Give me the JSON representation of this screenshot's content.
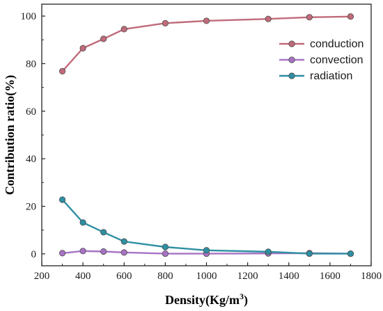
{
  "chart_data": {
    "type": "line",
    "xlabel": "Density(Kg/m",
    "xlabel_sup": "3",
    "xlabel_close": ")",
    "ylabel": "Contribution ratio(%)",
    "xlim": [
      200,
      1800
    ],
    "ylim": [
      -5,
      105
    ],
    "xticks": [
      200,
      400,
      600,
      800,
      1000,
      1200,
      1400,
      1600,
      1800
    ],
    "yticks": [
      0,
      20,
      40,
      60,
      80,
      100
    ],
    "x": [
      300,
      400,
      500,
      600,
      800,
      1000,
      1300,
      1500,
      1700
    ],
    "legend_position": "top-right",
    "grid": false,
    "series": [
      {
        "name": "conduction",
        "color": "#c06b7a",
        "values": [
          76.8,
          86.5,
          90.4,
          94.5,
          97.0,
          98.0,
          98.8,
          99.5,
          99.8
        ]
      },
      {
        "name": "convection",
        "color": "#a773c4",
        "values": [
          0.3,
          1.2,
          1.0,
          0.6,
          0.1,
          0.1,
          0.2,
          0.3,
          0.1
        ]
      },
      {
        "name": "radiation",
        "color": "#2e8fa3",
        "values": [
          22.8,
          13.2,
          9.1,
          5.2,
          2.9,
          1.5,
          0.9,
          0.1,
          0.1
        ]
      }
    ]
  }
}
